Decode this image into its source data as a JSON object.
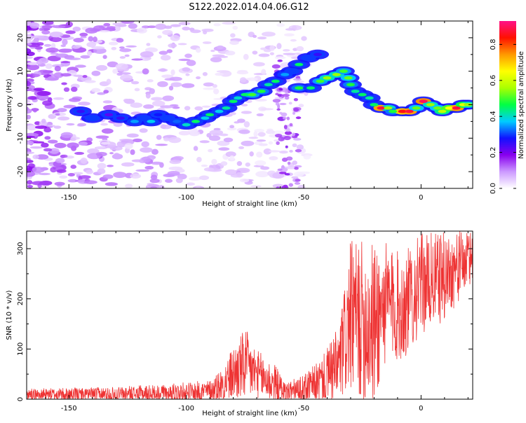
{
  "title": "S122.2022.014.04.06.G12",
  "chart_data": [
    {
      "type": "heatmap",
      "xlabel": "Height of straight line (km)",
      "ylabel": "Frequency (Hz)",
      "xlim": [
        -168,
        22
      ],
      "ylim": [
        -25,
        25
      ],
      "x_ticks": [
        -150,
        -100,
        -50,
        0
      ],
      "y_ticks": [
        -20,
        -10,
        0,
        10,
        20
      ],
      "colorbar": {
        "label": "Normalized spectral amplitude",
        "range": [
          0,
          0.93
        ],
        "ticks": [
          0.0,
          0.2,
          0.4,
          0.6,
          0.8
        ],
        "colors": [
          "#ffffff",
          "#cc99ff",
          "#8800ee",
          "#1111ff",
          "#00ccff",
          "#00ff44",
          "#aaff00",
          "#ffff00",
          "#ff9900",
          "#ff1100",
          "#ff1188"
        ]
      },
      "ridge": [
        {
          "x": -145,
          "y": -2,
          "a": 0.25
        },
        {
          "x": -140,
          "y": -4,
          "a": 0.3
        },
        {
          "x": -133,
          "y": -3,
          "a": 0.22
        },
        {
          "x": -128,
          "y": -4,
          "a": 0.25
        },
        {
          "x": -122,
          "y": -5,
          "a": 0.35
        },
        {
          "x": -118,
          "y": -4,
          "a": 0.3
        },
        {
          "x": -115,
          "y": -5,
          "a": 0.38
        },
        {
          "x": -112,
          "y": -3,
          "a": 0.28
        },
        {
          "x": -108,
          "y": -4,
          "a": 0.3
        },
        {
          "x": -104,
          "y": -5,
          "a": 0.32
        },
        {
          "x": -100,
          "y": -6,
          "a": 0.4
        },
        {
          "x": -96,
          "y": -5,
          "a": 0.45
        },
        {
          "x": -92,
          "y": -4,
          "a": 0.38
        },
        {
          "x": -90,
          "y": -3,
          "a": 0.45
        },
        {
          "x": -86,
          "y": -2,
          "a": 0.38
        },
        {
          "x": -83,
          "y": -1,
          "a": 0.42
        },
        {
          "x": -80,
          "y": 1,
          "a": 0.45
        },
        {
          "x": -78,
          "y": 2,
          "a": 0.4
        },
        {
          "x": -75,
          "y": 3,
          "a": 0.45
        },
        {
          "x": -72,
          "y": 3,
          "a": 0.5
        },
        {
          "x": -68,
          "y": 4,
          "a": 0.48
        },
        {
          "x": -65,
          "y": 6,
          "a": 0.42
        },
        {
          "x": -62,
          "y": 7,
          "a": 0.45
        },
        {
          "x": -58,
          "y": 9,
          "a": 0.35
        },
        {
          "x": -55,
          "y": 10,
          "a": 0.3
        },
        {
          "x": -52,
          "y": 12,
          "a": 0.45
        },
        {
          "x": -48,
          "y": 14,
          "a": 0.3
        },
        {
          "x": -44,
          "y": 15,
          "a": 0.25
        },
        {
          "x": -52,
          "y": 5,
          "a": 0.48
        },
        {
          "x": -47,
          "y": 5,
          "a": 0.45
        },
        {
          "x": -43,
          "y": 7,
          "a": 0.5
        },
        {
          "x": -40,
          "y": 8,
          "a": 0.55
        },
        {
          "x": -36,
          "y": 9,
          "a": 0.55
        },
        {
          "x": -33,
          "y": 10,
          "a": 0.5
        },
        {
          "x": -31,
          "y": 8,
          "a": 0.52
        },
        {
          "x": -30,
          "y": 6,
          "a": 0.48
        },
        {
          "x": -28,
          "y": 4,
          "a": 0.42
        },
        {
          "x": -25,
          "y": 3,
          "a": 0.45
        },
        {
          "x": -22,
          "y": 2,
          "a": 0.42
        },
        {
          "x": -20,
          "y": 0,
          "a": 0.45
        },
        {
          "x": -17,
          "y": -1,
          "a": 0.88
        },
        {
          "x": -14,
          "y": -1,
          "a": 0.55
        },
        {
          "x": -12,
          "y": -2,
          "a": 0.48
        },
        {
          "x": -8,
          "y": -2,
          "a": 0.85
        },
        {
          "x": -5,
          "y": -2,
          "a": 0.88
        },
        {
          "x": -2,
          "y": -1,
          "a": 0.52
        },
        {
          "x": 1,
          "y": 1,
          "a": 0.9
        },
        {
          "x": 4,
          "y": 0,
          "a": 0.55
        },
        {
          "x": 7,
          "y": -1,
          "a": 0.52
        },
        {
          "x": 9,
          "y": -2,
          "a": 0.58
        },
        {
          "x": 12,
          "y": -1,
          "a": 0.65
        },
        {
          "x": 15,
          "y": -1,
          "a": 0.88
        },
        {
          "x": 18,
          "y": 0,
          "a": 0.62
        },
        {
          "x": 20,
          "y": 0,
          "a": 0.55
        }
      ]
    },
    {
      "type": "line",
      "xlabel": "Height of straight line (km)",
      "ylabel": "SNR (10 * v/v)",
      "xlim": [
        -168,
        22
      ],
      "ylim": [
        0,
        335
      ],
      "x_ticks": [
        -150,
        -100,
        -50,
        0
      ],
      "y_ticks": [
        0,
        100,
        200,
        300
      ],
      "color": "#ee3333",
      "envelope": [
        {
          "x": -168,
          "base": 8,
          "amp": 12
        },
        {
          "x": -140,
          "base": 8,
          "amp": 14
        },
        {
          "x": -110,
          "base": 10,
          "amp": 18
        },
        {
          "x": -90,
          "base": 14,
          "amp": 22
        },
        {
          "x": -85,
          "base": 25,
          "amp": 35
        },
        {
          "x": -80,
          "base": 45,
          "amp": 55
        },
        {
          "x": -75,
          "base": 60,
          "amp": 75
        },
        {
          "x": -70,
          "base": 45,
          "amp": 50
        },
        {
          "x": -62,
          "base": 25,
          "amp": 40
        },
        {
          "x": -58,
          "base": 12,
          "amp": 20
        },
        {
          "x": -50,
          "base": 15,
          "amp": 30
        },
        {
          "x": -42,
          "base": 35,
          "amp": 45
        },
        {
          "x": -35,
          "base": 60,
          "amp": 80
        },
        {
          "x": -30,
          "base": 150,
          "amp": 150
        },
        {
          "x": -25,
          "base": 140,
          "amp": 160
        },
        {
          "x": -20,
          "base": 130,
          "amp": 170
        },
        {
          "x": -15,
          "base": 180,
          "amp": 120
        },
        {
          "x": -8,
          "base": 170,
          "amp": 110
        },
        {
          "x": 0,
          "base": 220,
          "amp": 100
        },
        {
          "x": 10,
          "base": 235,
          "amp": 90
        },
        {
          "x": 22,
          "base": 280,
          "amp": 50
        }
      ]
    }
  ]
}
